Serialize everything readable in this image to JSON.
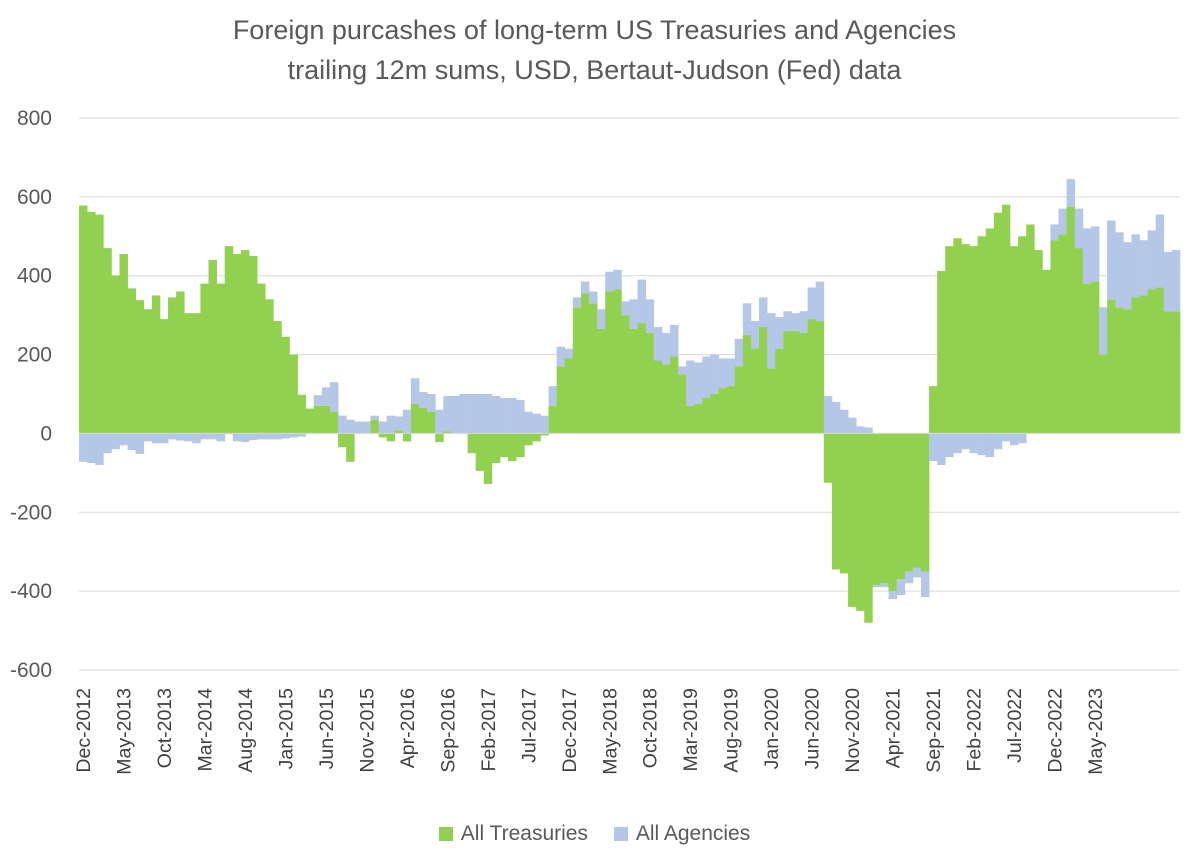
{
  "chart_data": {
    "type": "bar",
    "stacked": true,
    "title": "Foreign purcashes of long-term US Treasuries and Agencies",
    "subtitle": "trailing 12m sums, USD, Bertaut-Judson (Fed) data",
    "xlabel": "",
    "ylabel": "",
    "ylim": [
      -600,
      800
    ],
    "yticks": [
      800,
      600,
      400,
      200,
      0,
      -200,
      -400,
      -600
    ],
    "grid": true,
    "legend_position": "bottom",
    "xtick_labels": [
      "Dec-2012",
      "May-2013",
      "Oct-2013",
      "Mar-2014",
      "Aug-2014",
      "Jan-2015",
      "Jun-2015",
      "Nov-2015",
      "Apr-2016",
      "Sep-2016",
      "Feb-2017",
      "Jul-2017",
      "Dec-2017",
      "May-2018",
      "Oct-2018",
      "Mar-2019",
      "Aug-2019",
      "Jan-2020",
      "Jun-2020",
      "Nov-2020",
      "Apr-2021",
      "Sep-2021",
      "Feb-2022",
      "Jul-2022",
      "Dec-2022",
      "May-2023"
    ],
    "series": [
      {
        "name": "All Treasuries",
        "color": "#92d050",
        "values": [
          578,
          562,
          555,
          470,
          400,
          455,
          368,
          338,
          315,
          350,
          290,
          345,
          360,
          305,
          305,
          380,
          440,
          380,
          475,
          455,
          465,
          450,
          380,
          340,
          285,
          245,
          200,
          98,
          63,
          70,
          70,
          55,
          -35,
          -72,
          0,
          0,
          35,
          -10,
          -20,
          8,
          -20,
          75,
          65,
          55,
          -22,
          5,
          0,
          0,
          -50,
          -95,
          -128,
          -75,
          -60,
          -70,
          -60,
          -30,
          -20,
          -5,
          70,
          170,
          190,
          320,
          355,
          330,
          265,
          360,
          365,
          300,
          265,
          280,
          255,
          185,
          175,
          195,
          150,
          70,
          75,
          90,
          100,
          115,
          120,
          170,
          250,
          215,
          270,
          165,
          215,
          260,
          260,
          255,
          290,
          285,
          -125,
          -345,
          -355,
          -440,
          -450,
          -480,
          -385,
          -380,
          -400,
          -370,
          -350,
          -340,
          -350,
          120,
          412,
          475,
          495,
          480,
          475,
          500,
          520,
          560,
          580,
          475,
          500,
          530,
          465,
          415,
          490,
          505,
          575,
          470,
          380,
          385,
          200,
          340,
          320,
          315,
          345,
          350,
          365,
          370,
          310,
          310
        ]
      },
      {
        "name": "All Agencies",
        "color": "#b4c7e7",
        "values": [
          -72,
          -75,
          -80,
          -50,
          -40,
          -30,
          -42,
          -52,
          -20,
          -25,
          -25,
          -15,
          -18,
          -20,
          -25,
          -15,
          -15,
          -20,
          -2,
          -20,
          -22,
          -17,
          -15,
          -15,
          -15,
          -13,
          -10,
          -8,
          0,
          27,
          47,
          75,
          45,
          35,
          30,
          30,
          10,
          30,
          45,
          35,
          60,
          65,
          40,
          45,
          60,
          90,
          95,
          100,
          100,
          100,
          100,
          95,
          90,
          90,
          85,
          55,
          50,
          45,
          50,
          50,
          25,
          25,
          30,
          30,
          50,
          50,
          50,
          35,
          75,
          110,
          85,
          85,
          80,
          80,
          20,
          115,
          105,
          105,
          100,
          75,
          70,
          70,
          80,
          70,
          75,
          140,
          80,
          50,
          45,
          55,
          80,
          100,
          95,
          80,
          60,
          40,
          18,
          15,
          -5,
          -10,
          -20,
          -40,
          -30,
          -25,
          -65,
          -70,
          -80,
          -60,
          -50,
          -40,
          -50,
          -55,
          -60,
          -40,
          -20,
          -30,
          -25,
          0,
          -1,
          0,
          40,
          65,
          70,
          100,
          140,
          140,
          120,
          200,
          190,
          170,
          160,
          140,
          150,
          185,
          150,
          155
        ]
      }
    ]
  }
}
